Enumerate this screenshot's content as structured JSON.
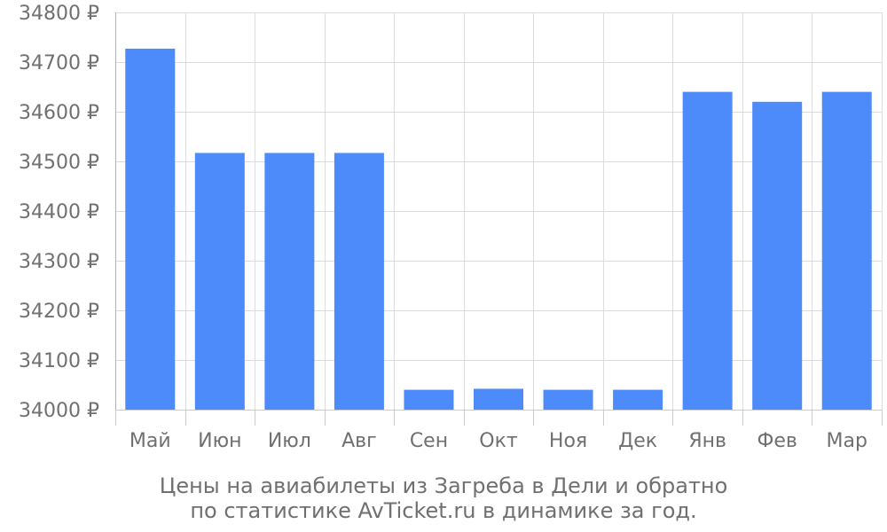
{
  "chart_data": {
    "type": "bar",
    "categories": [
      "Май",
      "Июн",
      "Июл",
      "Авг",
      "Сен",
      "Окт",
      "Ноя",
      "Дек",
      "Янв",
      "Фев",
      "Мар"
    ],
    "values": [
      34727,
      34517,
      34517,
      34517,
      34040,
      34042,
      34040,
      34040,
      34640,
      34620,
      34640
    ],
    "ylim": [
      34000,
      34800
    ],
    "yticks": [
      34000,
      34100,
      34200,
      34300,
      34400,
      34500,
      34600,
      34700,
      34800
    ],
    "y_tick_labels": [
      "34000 ₽",
      "34100 ₽",
      "34200 ₽",
      "34300 ₽",
      "34400 ₽",
      "34500 ₽",
      "34600 ₽",
      "34700 ₽",
      "34800 ₽"
    ],
    "grid": true,
    "bar_color": "#4d8afa",
    "grid_color": "#dddddd",
    "text_color": "#707070"
  },
  "caption": {
    "line1": "Цены на авиабилеты из Загреба в Дели и обратно",
    "line2": "по статистике AvTicket.ru в динамике за год."
  }
}
